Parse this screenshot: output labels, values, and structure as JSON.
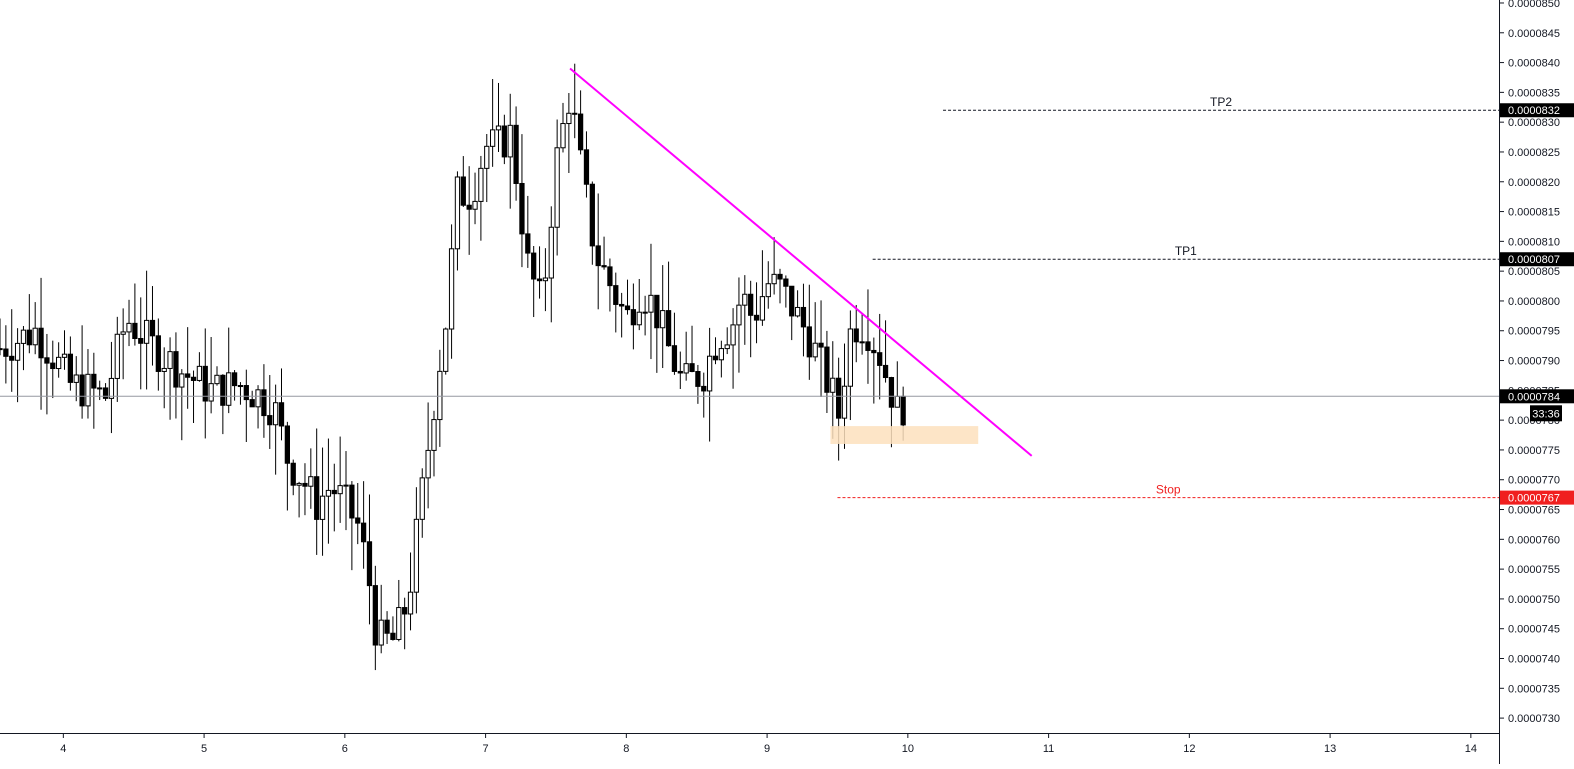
{
  "chart_data": {
    "type": "candlestick",
    "x_axis": {
      "tick_labels": [
        "4",
        "5",
        "6",
        "7",
        "8",
        "9",
        "10",
        "11",
        "12",
        "13",
        "14"
      ],
      "range": [
        3.55,
        14.2
      ]
    },
    "y_axis": {
      "range": [
        7.275e-05,
        8.505e-05
      ],
      "tick_values": [
        7.3e-05,
        7.35e-05,
        7.4e-05,
        7.45e-05,
        7.5e-05,
        7.55e-05,
        7.6e-05,
        7.65e-05,
        7.7e-05,
        7.75e-05,
        7.8e-05,
        7.85e-05,
        7.9e-05,
        7.95e-05,
        8e-05,
        8.05e-05,
        8.1e-05,
        8.15e-05,
        8.2e-05,
        8.25e-05,
        8.3e-05,
        8.35e-05,
        8.4e-05,
        8.45e-05,
        8.5e-05
      ],
      "tick_labels": [
        "0.0000730",
        "0.0000735",
        "0.0000740",
        "0.0000745",
        "0.0000750",
        "0.0000755",
        "0.0000760",
        "0.0000765",
        "0.0000770",
        "0.0000775",
        "0.0000780",
        "0.0000785",
        "0.0000790",
        "0.0000795",
        "0.0000800",
        "0.0000805",
        "0.0000810",
        "0.0000815",
        "0.0000820",
        "0.0000825",
        "0.0000830",
        "0.0000835",
        "0.0000840",
        "0.0000845",
        "0.0000850"
      ],
      "position": "right"
    },
    "grid": false,
    "last_price": {
      "value": 7.84e-05,
      "label": "0.0000784",
      "countdown": "33:36"
    },
    "horizontal_levels": [
      {
        "name": "TP2",
        "value": 8.32e-05,
        "label": "0.0000832",
        "x_start": 10.25,
        "color": "#131722"
      },
      {
        "name": "TP1",
        "value": 8.07e-05,
        "label": "0.0000807",
        "x_start": 9.75,
        "color": "#131722"
      },
      {
        "name": "Stop",
        "value": 7.67e-05,
        "label": "0.0000767",
        "x_start": 9.5,
        "color": "#f01f1f"
      }
    ],
    "trendline": {
      "x1": 7.6,
      "y1": 8.39e-05,
      "x2": 10.88,
      "y2": 7.74e-05,
      "color": "#ff00ff"
    },
    "zone": {
      "x1": 9.45,
      "x2": 10.5,
      "y_top": 7.79e-05,
      "y_bottom": 7.76e-05,
      "color": "#fde0bd"
    },
    "candles_anchor": [
      [
        3.55,
        7.92e-05
      ],
      [
        3.8,
        7.95e-05
      ],
      [
        3.95,
        7.9e-05
      ],
      [
        4.05,
        7.86e-05
      ],
      [
        4.3,
        7.84e-05
      ],
      [
        4.45,
        7.97e-05
      ],
      [
        4.65,
        7.92e-05
      ],
      [
        4.85,
        7.88e-05
      ],
      [
        5.05,
        7.85e-05
      ],
      [
        5.25,
        7.86e-05
      ],
      [
        5.4,
        7.84e-05
      ],
      [
        5.5,
        7.82e-05
      ],
      [
        5.6,
        7.73e-05
      ],
      [
        5.7,
        7.7e-05
      ],
      [
        5.8,
        7.66e-05
      ],
      [
        5.9,
        7.69e-05
      ],
      [
        6.0,
        7.66e-05
      ],
      [
        6.1,
        7.62e-05
      ],
      [
        6.18,
        7.52e-05
      ],
      [
        6.23,
        7.43e-05
      ],
      [
        6.35,
        7.43e-05
      ],
      [
        6.45,
        7.5e-05
      ],
      [
        6.55,
        7.68e-05
      ],
      [
        6.6,
        7.77e-05
      ],
      [
        6.65,
        7.86e-05
      ],
      [
        6.72,
        7.97e-05
      ],
      [
        6.8,
        8.18e-05
      ],
      [
        6.9,
        8.18e-05
      ],
      [
        7.0,
        8.26e-05
      ],
      [
        7.08,
        8.26e-05
      ],
      [
        7.18,
        8.28e-05
      ],
      [
        7.3,
        8.06e-05
      ],
      [
        7.4,
        7.99e-05
      ],
      [
        7.5,
        8.23e-05
      ],
      [
        7.6,
        8.35e-05
      ],
      [
        7.68,
        8.22e-05
      ],
      [
        7.78,
        8.08e-05
      ],
      [
        7.9,
        8.02e-05
      ],
      [
        8.0,
        7.97e-05
      ],
      [
        8.1,
        8.02e-05
      ],
      [
        8.2,
        7.99e-05
      ],
      [
        8.3,
        7.92e-05
      ],
      [
        8.4,
        7.86e-05
      ],
      [
        8.55,
        7.88e-05
      ],
      [
        8.65,
        7.94e-05
      ],
      [
        8.75,
        7.96e-05
      ],
      [
        8.82,
        8.01e-05
      ],
      [
        8.9,
        7.97e-05
      ],
      [
        9.0,
        8.03e-05
      ],
      [
        9.1,
        8.02e-05
      ],
      [
        9.2,
        7.98e-05
      ],
      [
        9.3,
        7.94e-05
      ],
      [
        9.4,
        7.88e-05
      ],
      [
        9.47,
        7.84e-05
      ],
      [
        9.52,
        7.8e-05
      ],
      [
        9.55,
        7.88e-05
      ],
      [
        9.6,
        7.96e-05
      ],
      [
        9.7,
        7.96e-05
      ],
      [
        9.8,
        7.91e-05
      ],
      [
        9.88,
        7.85e-05
      ],
      [
        9.93,
        7.81e-05
      ],
      [
        10.0,
        7.84e-05
      ]
    ]
  }
}
